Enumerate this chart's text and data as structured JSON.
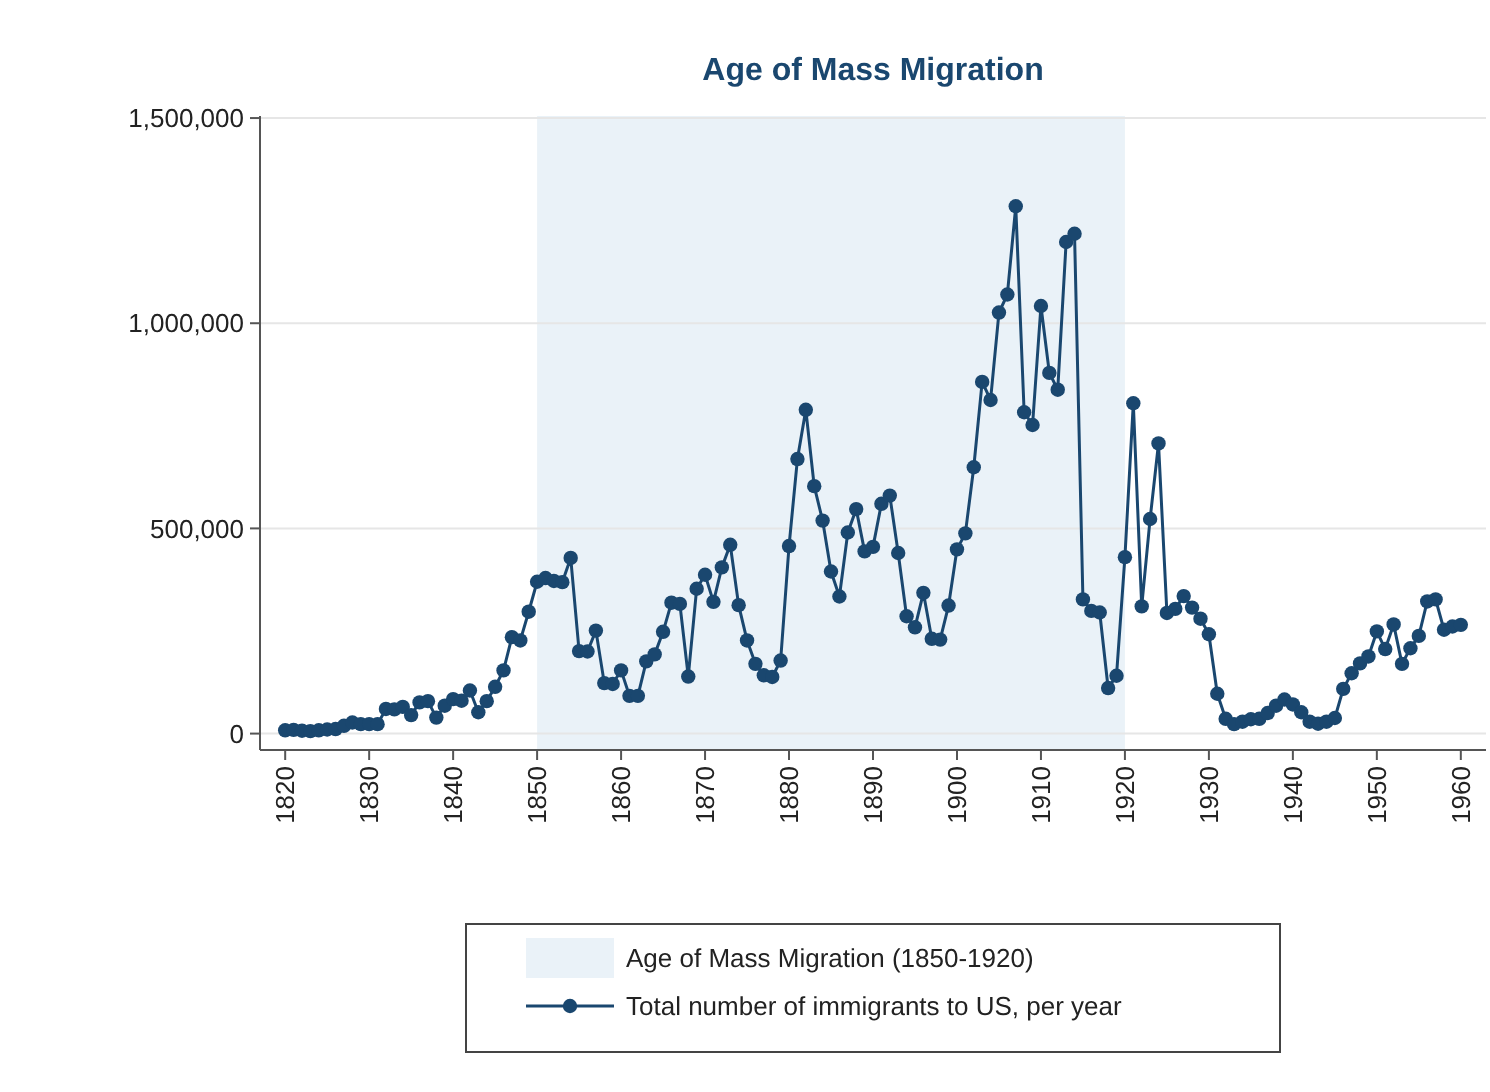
{
  "chart_data": {
    "type": "line",
    "title": "Age of Mass Migration",
    "x": [
      1820,
      1821,
      1822,
      1823,
      1824,
      1825,
      1826,
      1827,
      1828,
      1829,
      1830,
      1831,
      1832,
      1833,
      1834,
      1835,
      1836,
      1837,
      1838,
      1839,
      1840,
      1841,
      1842,
      1843,
      1844,
      1845,
      1846,
      1847,
      1848,
      1849,
      1850,
      1851,
      1852,
      1853,
      1854,
      1855,
      1856,
      1857,
      1858,
      1859,
      1860,
      1861,
      1862,
      1863,
      1864,
      1865,
      1866,
      1867,
      1868,
      1869,
      1870,
      1871,
      1872,
      1873,
      1874,
      1875,
      1876,
      1877,
      1878,
      1879,
      1880,
      1881,
      1882,
      1883,
      1884,
      1885,
      1886,
      1887,
      1888,
      1889,
      1890,
      1891,
      1892,
      1893,
      1894,
      1895,
      1896,
      1897,
      1898,
      1899,
      1900,
      1901,
      1902,
      1903,
      1904,
      1905,
      1906,
      1907,
      1908,
      1909,
      1910,
      1911,
      1912,
      1913,
      1914,
      1915,
      1916,
      1917,
      1918,
      1919,
      1920,
      1921,
      1922,
      1923,
      1924,
      1925,
      1926,
      1927,
      1928,
      1929,
      1930,
      1931,
      1932,
      1933,
      1934,
      1935,
      1936,
      1937,
      1938,
      1939,
      1940,
      1941,
      1942,
      1943,
      1944,
      1945,
      1946,
      1947,
      1948,
      1949,
      1950,
      1951,
      1952,
      1953,
      1954,
      1955,
      1956,
      1957,
      1958,
      1959,
      1960
    ],
    "series": [
      {
        "name": "Total number of immigrants to US, per year",
        "color": "#1a476f",
        "values": [
          8000,
          9000,
          7000,
          6000,
          8000,
          10000,
          11000,
          19000,
          27000,
          23000,
          23000,
          23000,
          60000,
          59000,
          65000,
          45000,
          76000,
          79000,
          39000,
          68000,
          84000,
          80000,
          105000,
          52000,
          79000,
          114000,
          154000,
          235000,
          227000,
          297000,
          370000,
          379000,
          372000,
          369000,
          428000,
          201000,
          200000,
          251000,
          123000,
          121000,
          154000,
          92000,
          92000,
          176000,
          193000,
          248000,
          319000,
          316000,
          139000,
          353000,
          387000,
          321000,
          405000,
          460000,
          313000,
          227000,
          170000,
          142000,
          138000,
          178000,
          457000,
          669000,
          789000,
          603000,
          519000,
          395000,
          334000,
          490000,
          547000,
          444000,
          455000,
          560000,
          580000,
          440000,
          286000,
          259000,
          343000,
          231000,
          229000,
          312000,
          449000,
          488000,
          649000,
          857000,
          813000,
          1026000,
          1070000,
          1285000,
          783000,
          752000,
          1042000,
          879000,
          838000,
          1198000,
          1218000,
          327000,
          299000,
          295000,
          111000,
          141000,
          430000,
          805000,
          310000,
          523000,
          707000,
          294000,
          304000,
          335000,
          307000,
          280000,
          242000,
          97000,
          36000,
          23000,
          29000,
          35000,
          36000,
          50000,
          68000,
          83000,
          71000,
          52000,
          29000,
          24000,
          29000,
          38000,
          109000,
          147000,
          171000,
          188000,
          249000,
          206000,
          266000,
          170000,
          208000,
          238000,
          322000,
          327000,
          253000,
          261000,
          265000
        ]
      }
    ],
    "xlim": [
      1817,
      1963
    ],
    "ylim": [
      -40000,
      1505000
    ],
    "xticks": [
      1820,
      1830,
      1840,
      1850,
      1860,
      1870,
      1880,
      1890,
      1900,
      1910,
      1920,
      1930,
      1940,
      1950,
      1960
    ],
    "yticks": [
      {
        "value": 0,
        "label": "0"
      },
      {
        "value": 500000,
        "label": "500,000"
      },
      {
        "value": 1000000,
        "label": "1,000,000"
      },
      {
        "value": 1500000,
        "label": "1,500,000"
      }
    ],
    "bands": [
      {
        "axis": "x",
        "from": 1850,
        "to": 1920,
        "label": "Age of Mass Migration (1850-1920)",
        "color": "#eaf2f8"
      }
    ],
    "grid": "y",
    "legend": "bottom",
    "marker": "circle",
    "line_style": "solid"
  }
}
